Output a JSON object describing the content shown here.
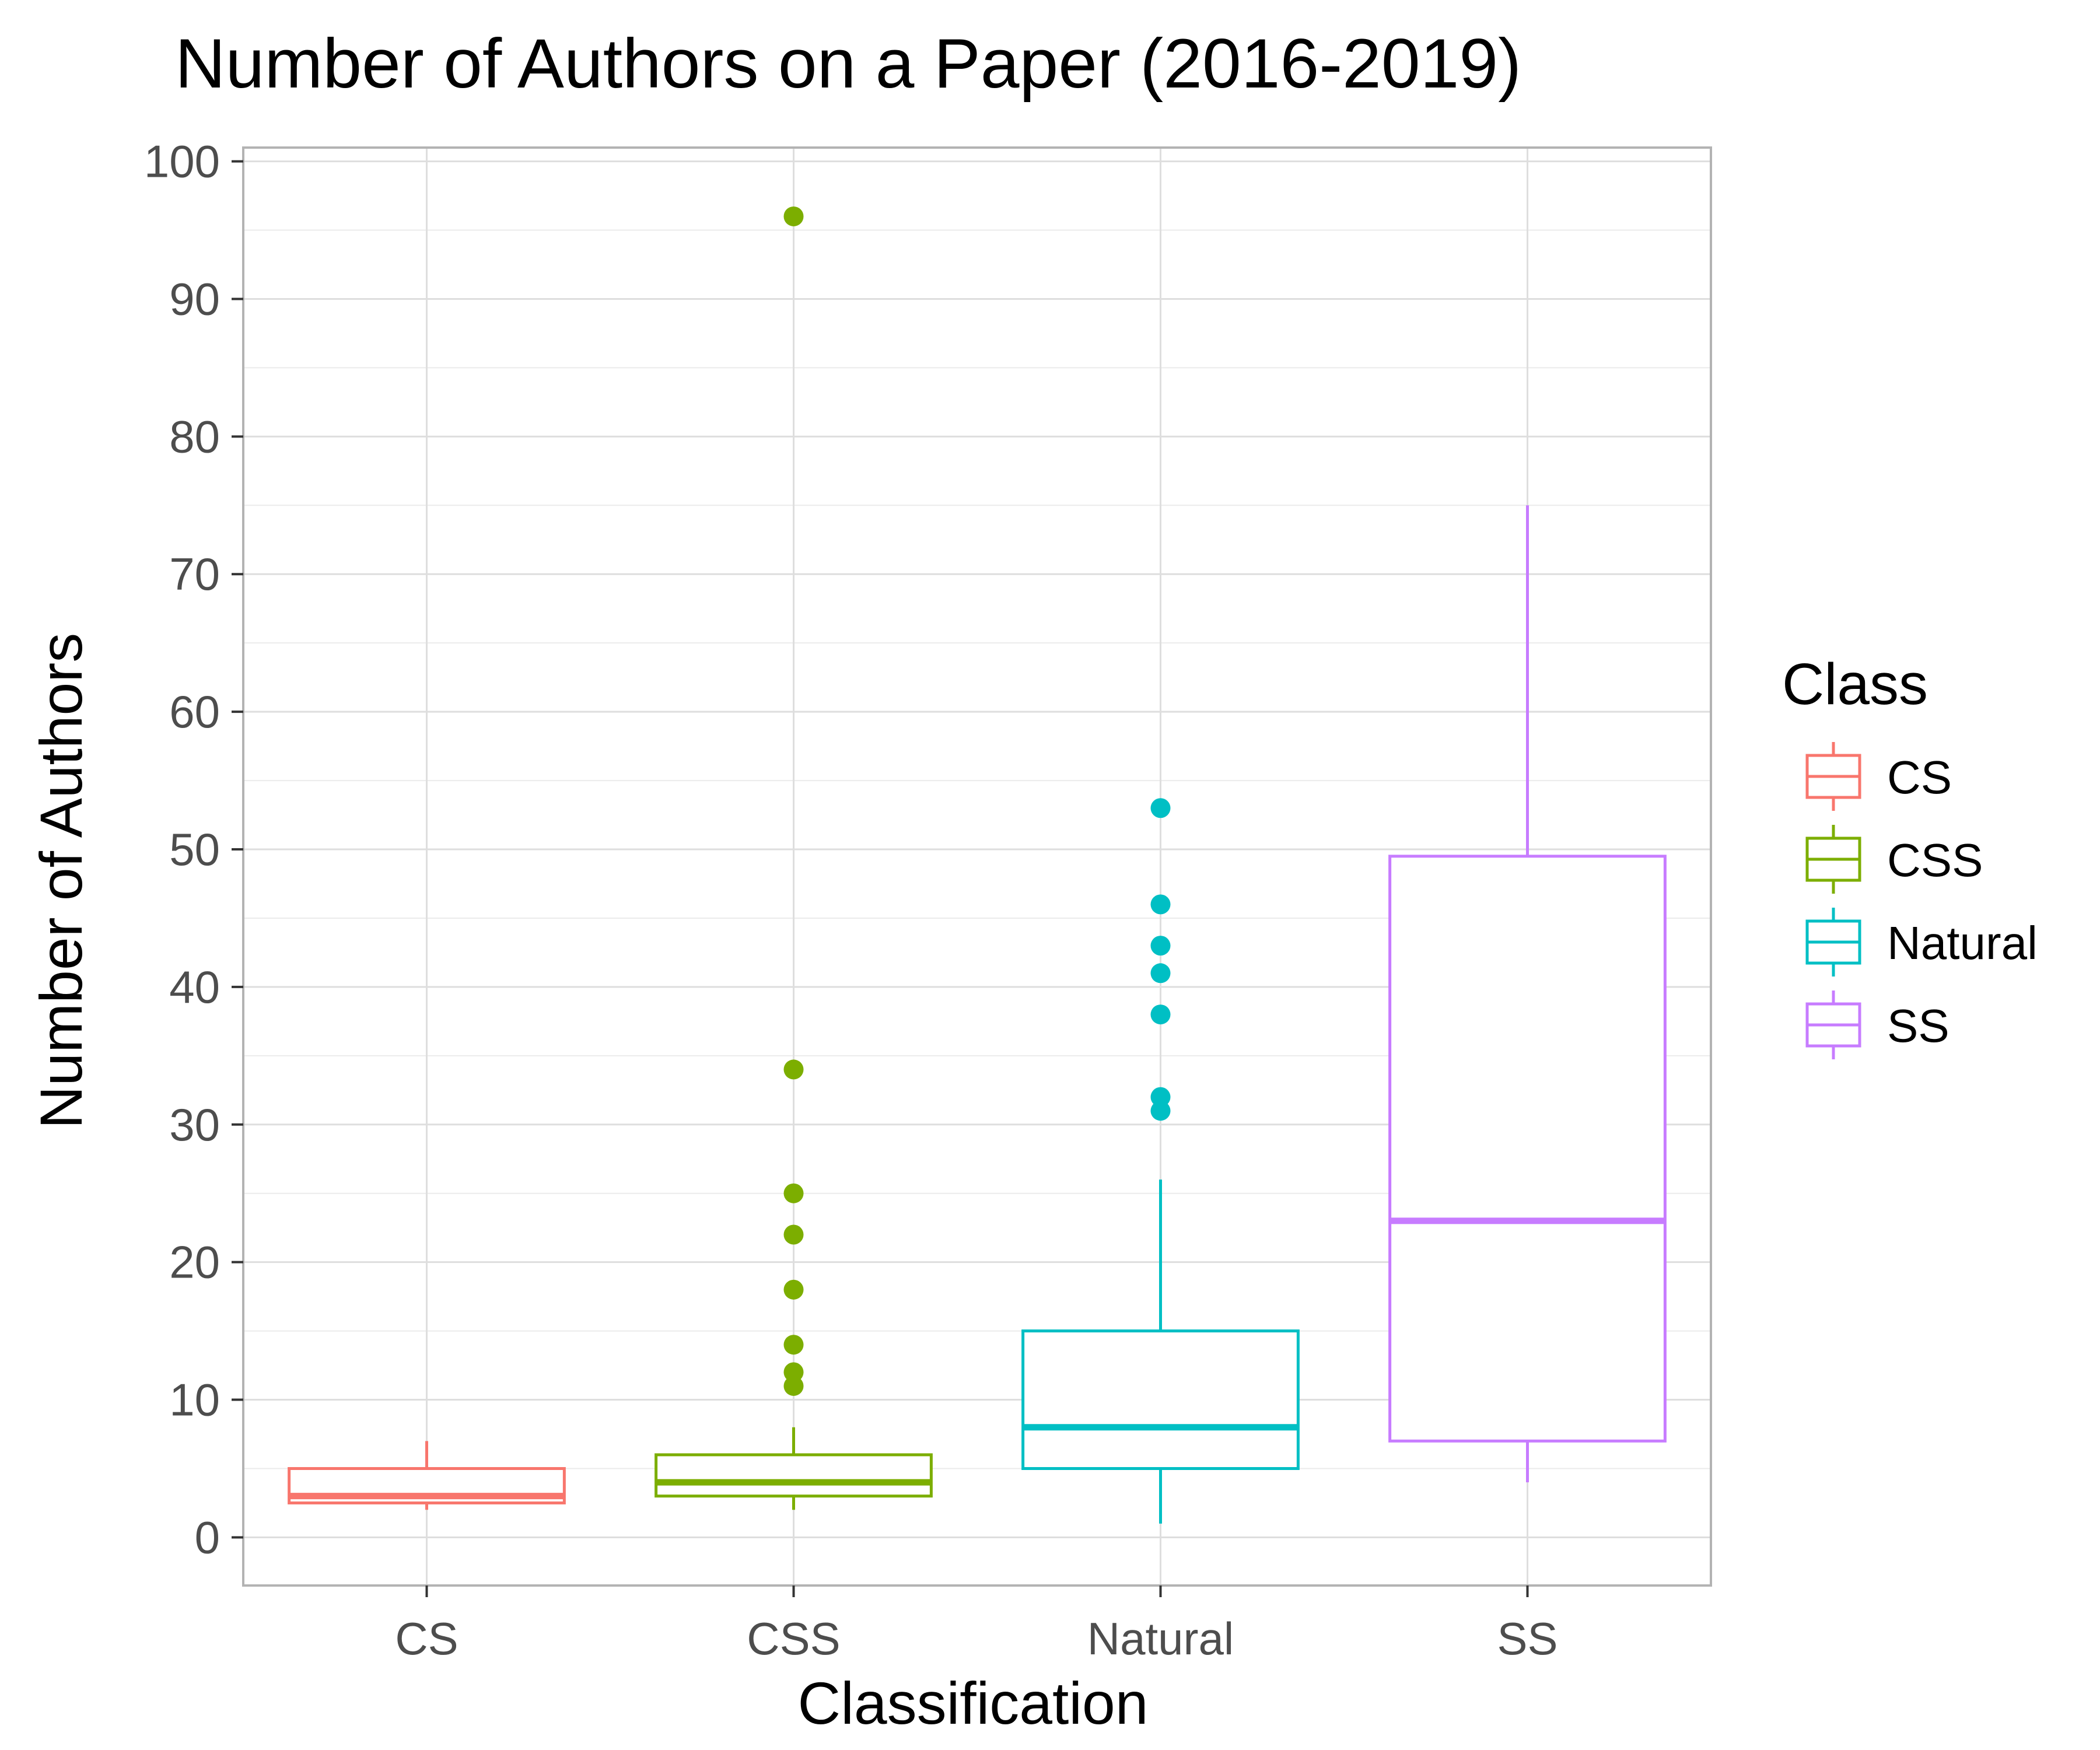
{
  "chart_data": {
    "type": "boxplot",
    "title": "Number of Authors on a Paper (2016-2019)",
    "xlabel": "Classification",
    "ylabel": "Number of Authors",
    "ylim": [
      -3.5,
      101
    ],
    "y_ticks": [
      0,
      10,
      20,
      30,
      40,
      50,
      60,
      70,
      80,
      90,
      100
    ],
    "y_tick_labels": [
      "0",
      "10",
      "20",
      "30",
      "40",
      "50",
      "60",
      "70",
      "80",
      "90",
      "100"
    ],
    "categories": [
      "CS",
      "CSS",
      "Natural",
      "SS"
    ],
    "grid": true,
    "legend": {
      "title": "Class",
      "placement": "right",
      "entries": [
        "CS",
        "CSS",
        "Natural",
        "SS"
      ]
    },
    "series": [
      {
        "name": "CS",
        "color": "#f8766d",
        "min": 2,
        "q1": 2.5,
        "median": 3,
        "q3": 5,
        "max": 7,
        "outliers": []
      },
      {
        "name": "CSS",
        "color": "#7cae00",
        "min": 2,
        "q1": 3,
        "median": 4,
        "q3": 6,
        "max": 8,
        "outliers": [
          11,
          12,
          14,
          18,
          22,
          25,
          34,
          96
        ]
      },
      {
        "name": "Natural",
        "color": "#00bfc4",
        "min": 1,
        "q1": 5,
        "median": 8,
        "q3": 15,
        "max": 26,
        "outliers": [
          31,
          32,
          38,
          41,
          43,
          46,
          53
        ]
      },
      {
        "name": "SS",
        "color": "#c77cff",
        "min": 4,
        "q1": 7,
        "median": 23,
        "q3": 49.5,
        "max": 75,
        "outliers": []
      }
    ]
  }
}
